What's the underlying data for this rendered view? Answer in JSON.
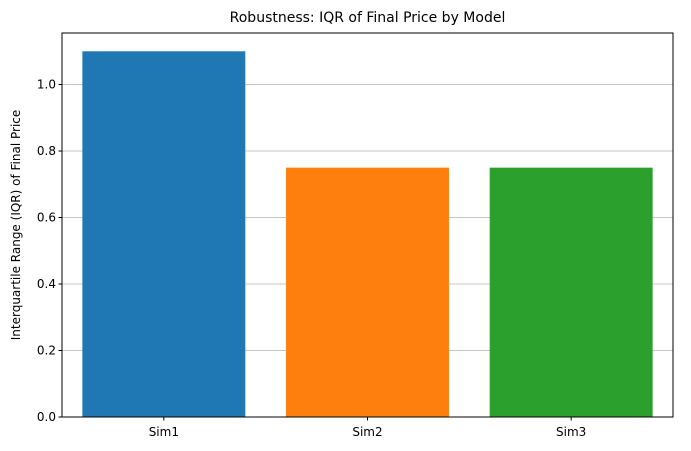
{
  "chart_data": {
    "type": "bar",
    "title": "Robustness: IQR of Final Price by Model",
    "xlabel": "",
    "ylabel": "Interquartile Range (IQR) of Final Price",
    "categories": [
      "Sim1",
      "Sim2",
      "Sim3"
    ],
    "values": [
      1.1,
      0.75,
      0.75
    ],
    "colors": [
      "#1f77b4",
      "#ff7f0e",
      "#2ca02c"
    ],
    "ylim": [
      0,
      1.155
    ],
    "yticks": [
      0.0,
      0.2,
      0.4,
      0.6,
      0.8,
      1.0
    ],
    "ytick_labels": [
      "0.0",
      "0.2",
      "0.4",
      "0.6",
      "0.8",
      "1.0"
    ],
    "grid": "y-axis major gridlines",
    "grid_color": "#b0b0b0",
    "legend": "none"
  }
}
